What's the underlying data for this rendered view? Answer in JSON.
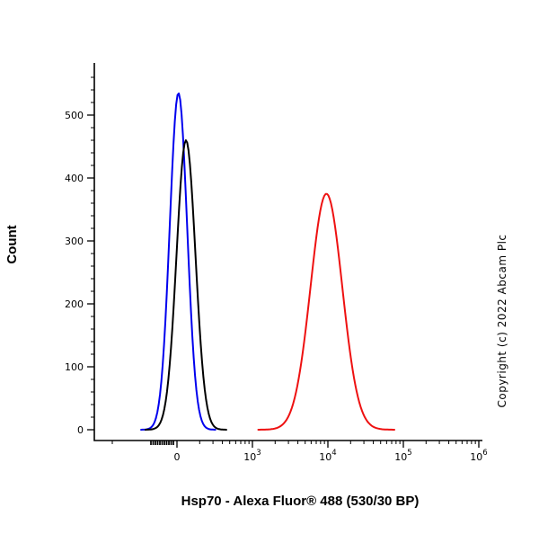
{
  "chart_data": {
    "type": "line",
    "chart_kind": "flow-cytometry-histogram",
    "title": "",
    "xlabel": "Hsp70 - Alexa Fluor® 488 (530/30 BP)",
    "ylabel": "Count",
    "copyright": "Copyright (c) 2022 Abcam Plc",
    "grid": false,
    "legend": "none",
    "x_axis": {
      "scale": "biexponential",
      "ticks": [
        {
          "label": "0",
          "unit": 0
        },
        {
          "label": "10^3",
          "base": "10",
          "exp": "3",
          "unit": 1
        },
        {
          "label": "10^4",
          "base": "10",
          "exp": "4",
          "unit": 2
        },
        {
          "label": "10^5",
          "base": "10",
          "exp": "5",
          "unit": 3
        },
        {
          "label": "10^6",
          "base": "10",
          "exp": "6",
          "unit": 4
        }
      ]
    },
    "y_axis": {
      "major_ticks": [
        0,
        100,
        200,
        300,
        400,
        500
      ],
      "minor_step": 20,
      "minor_max": 560,
      "lim": [
        0,
        580
      ]
    },
    "series": [
      {
        "name": "blue",
        "color": "#0000ee",
        "approx_mode_x": 0,
        "peak_count": 535,
        "center_unit": 0.02,
        "sigma_unit": 0.115
      },
      {
        "name": "black",
        "color": "#000000",
        "approx_mode_x": 100,
        "peak_count": 460,
        "center_unit": 0.12,
        "sigma_unit": 0.125
      },
      {
        "name": "red",
        "color": "#ee1111",
        "approx_mode_x": 9000,
        "peak_count": 375,
        "center_unit": 1.98,
        "sigma_unit": 0.21
      }
    ]
  }
}
